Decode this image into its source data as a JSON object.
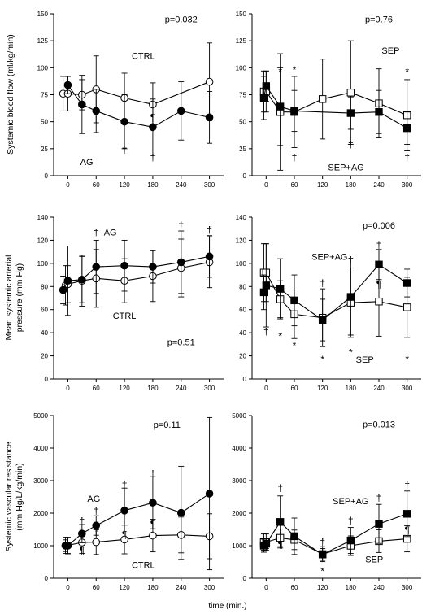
{
  "x_axis_title": "time (min.)",
  "row_ylabels": [
    [
      "Systemic blood flow (ml/kg/min)"
    ],
    [
      "Mean systemic arterial",
      "pressure (mm Hg)"
    ],
    [
      "Systemic vascular resistance",
      "(mm Hg/L/kg/min)"
    ]
  ],
  "chart_data": [
    {
      "type": "line",
      "panel": "top-left",
      "ylim": [
        0,
        150
      ],
      "yticks": [
        0,
        25,
        50,
        75,
        100,
        125,
        150
      ],
      "xticks": [
        0,
        60,
        120,
        180,
        240,
        300
      ],
      "marker": "circle",
      "series": [
        {
          "name": "CTRL",
          "filled": false,
          "x": [
            -10,
            0,
            30,
            60,
            120,
            180,
            300
          ],
          "y": [
            76,
            76,
            75,
            80,
            72,
            66,
            87
          ],
          "err": [
            16,
            16,
            14,
            31,
            23,
            20,
            36
          ]
        },
        {
          "name": "AG",
          "filled": true,
          "x": [
            0,
            30,
            60,
            120,
            180,
            240,
            300
          ],
          "y": [
            84,
            66,
            60,
            50,
            45,
            60,
            54
          ],
          "err": [
            8,
            27,
            20,
            25,
            26,
            27,
            24
          ]
        }
      ],
      "labels": [
        {
          "text": "p=0.032",
          "x": 240,
          "y": 145
        },
        {
          "text": "CTRL",
          "x": 160,
          "y": 111
        },
        {
          "text": "AG",
          "x": 40,
          "y": 13
        }
      ],
      "symbols": [
        {
          "text": "¶",
          "x": 180,
          "y": 54
        },
        {
          "text": "†",
          "x": 120,
          "y": 24
        },
        {
          "text": "†",
          "x": 180,
          "y": 17
        }
      ]
    },
    {
      "type": "line",
      "panel": "top-right",
      "ylim": [
        0,
        150
      ],
      "yticks": [
        0,
        25,
        50,
        75,
        100,
        125,
        150
      ],
      "xticks": [
        0,
        60,
        120,
        180,
        240,
        300
      ],
      "marker": "square",
      "series": [
        {
          "name": "SEP",
          "filled": false,
          "x": [
            -5,
            0,
            30,
            60,
            120,
            180,
            240,
            300
          ],
          "y": [
            78,
            78,
            59,
            59,
            71,
            77,
            67,
            56
          ],
          "err": [
            19,
            19,
            54,
            33,
            37,
            48,
            32,
            33
          ]
        },
        {
          "name": "SEP+AG",
          "filled": true,
          "x": [
            -5,
            0,
            30,
            60,
            180,
            240,
            300
          ],
          "y": [
            72,
            83,
            64,
            60,
            58,
            59,
            44
          ],
          "err": [
            20,
            14,
            36,
            19,
            15,
            20,
            15
          ]
        }
      ],
      "labels": [
        {
          "text": "p=0.76",
          "x": 240,
          "y": 145
        },
        {
          "text": "SEP",
          "x": 265,
          "y": 116
        },
        {
          "text": "SEP+AG",
          "x": 170,
          "y": 8
        }
      ],
      "symbols": [
        {
          "text": "*",
          "x": 30,
          "y": 96
        },
        {
          "text": "*",
          "x": 60,
          "y": 98
        },
        {
          "text": "*",
          "x": 300,
          "y": 96
        },
        {
          "text": "†",
          "x": 60,
          "y": 17
        },
        {
          "text": "†",
          "x": 180,
          "y": 29
        },
        {
          "text": "†",
          "x": 300,
          "y": 17
        }
      ]
    },
    {
      "type": "line",
      "panel": "middle-left",
      "ylim": [
        0,
        140
      ],
      "yticks": [
        0,
        20,
        40,
        60,
        80,
        100,
        120,
        140
      ],
      "xticks": [
        0,
        60,
        120,
        180,
        240,
        300
      ],
      "marker": "circle",
      "series": [
        {
          "name": "CTRL",
          "filled": false,
          "x": [
            -5,
            0,
            30,
            60,
            120,
            180,
            240,
            300
          ],
          "y": [
            81,
            82,
            85,
            87,
            85,
            89,
            96,
            101
          ],
          "err": [
            17,
            16,
            22,
            25,
            19,
            22,
            25,
            22
          ]
        },
        {
          "name": "AG",
          "filled": true,
          "x": [
            -10,
            0,
            30,
            60,
            120,
            180,
            240,
            300
          ],
          "y": [
            77,
            85,
            86,
            97,
            98,
            97,
            101,
            106
          ],
          "err": [
            12,
            30,
            20,
            23,
            22,
            14,
            27,
            18
          ]
        }
      ],
      "labels": [
        {
          "text": "AG",
          "x": 90,
          "y": 127
        },
        {
          "text": "CTRL",
          "x": 120,
          "y": 55
        },
        {
          "text": "p=0.51",
          "x": 240,
          "y": 32
        }
      ],
      "symbols": [
        {
          "text": "†",
          "x": 60,
          "y": 127
        },
        {
          "text": "†",
          "x": 240,
          "y": 133
        },
        {
          "text": "†",
          "x": 300,
          "y": 129
        }
      ]
    },
    {
      "type": "line",
      "panel": "middle-right",
      "ylim": [
        0,
        140
      ],
      "yticks": [
        0,
        20,
        40,
        60,
        80,
        100,
        120,
        140
      ],
      "xticks": [
        0,
        60,
        120,
        180,
        240,
        300
      ],
      "marker": "square",
      "series": [
        {
          "name": "SEP",
          "filled": false,
          "x": [
            -5,
            0,
            30,
            60,
            120,
            180,
            240,
            300
          ],
          "y": [
            92,
            92,
            69,
            56,
            53,
            66,
            67,
            62
          ],
          "err": [
            25,
            25,
            16,
            21,
            25,
            30,
            30,
            26
          ]
        },
        {
          "name": "SEP+AG",
          "filled": true,
          "x": [
            -5,
            0,
            30,
            60,
            120,
            180,
            240,
            300
          ],
          "y": [
            75,
            81,
            78,
            68,
            51,
            71,
            99,
            83
          ],
          "err": [
            15,
            36,
            26,
            22,
            18,
            33,
            13,
            12
          ]
        }
      ],
      "labels": [
        {
          "text": "p=0.006",
          "x": 240,
          "y": 133
        },
        {
          "text": "SEP+AG",
          "x": 135,
          "y": 106
        },
        {
          "text": "SEP",
          "x": 210,
          "y": 17
        }
      ],
      "symbols": [
        {
          "text": "†",
          "x": 0,
          "y": 41
        },
        {
          "text": "†",
          "x": 120,
          "y": 83
        },
        {
          "text": "†",
          "x": 180,
          "y": 103
        },
        {
          "text": "†",
          "x": 240,
          "y": 116
        },
        {
          "text": "¶",
          "x": 240,
          "y": 82
        },
        {
          "text": "*",
          "x": 30,
          "y": 37
        },
        {
          "text": "*",
          "x": 60,
          "y": 29
        },
        {
          "text": "*",
          "x": 120,
          "y": 17
        },
        {
          "text": "*",
          "x": 180,
          "y": 23
        },
        {
          "text": "*",
          "x": 300,
          "y": 17
        }
      ]
    },
    {
      "type": "line",
      "panel": "bottom-left",
      "ylim": [
        0,
        5000
      ],
      "yticks": [
        0,
        1000,
        2000,
        3000,
        4000,
        5000
      ],
      "xticks": [
        0,
        60,
        120,
        180,
        240,
        300
      ],
      "marker": "circle",
      "series": [
        {
          "name": "CTRL",
          "filled": false,
          "x": [
            -5,
            0,
            30,
            60,
            120,
            180,
            240,
            300
          ],
          "y": [
            1010,
            1010,
            1100,
            1110,
            1190,
            1310,
            1330,
            1290
          ],
          "err": [
            250,
            250,
            340,
            380,
            440,
            500,
            550,
            690
          ]
        },
        {
          "name": "AG",
          "filled": true,
          "x": [
            -5,
            0,
            30,
            60,
            120,
            180,
            240,
            300
          ],
          "y": [
            1000,
            1000,
            1370,
            1620,
            2080,
            2320,
            2010,
            2600
          ],
          "err": [
            180,
            250,
            280,
            300,
            690,
            800,
            1430,
            2340
          ]
        }
      ],
      "labels": [
        {
          "text": "p=0.11",
          "x": 210,
          "y": 4730
        },
        {
          "text": "AG",
          "x": 55,
          "y": 2450
        },
        {
          "text": "CTRL",
          "x": 160,
          "y": 410
        }
      ],
      "symbols": [
        {
          "text": "†",
          "x": 30,
          "y": 1760
        },
        {
          "text": "†",
          "x": 60,
          "y": 2080
        },
        {
          "text": "†",
          "x": 120,
          "y": 2880
        },
        {
          "text": "†",
          "x": 180,
          "y": 3210
        },
        {
          "text": "¶",
          "x": 30,
          "y": 850
        },
        {
          "text": "¶",
          "x": 60,
          "y": 1560
        },
        {
          "text": "¶",
          "x": 120,
          "y": 1340
        },
        {
          "text": "¶",
          "x": 180,
          "y": 1660
        }
      ]
    },
    {
      "type": "line",
      "panel": "bottom-right",
      "ylim": [
        0,
        5000
      ],
      "yticks": [
        0,
        1000,
        2000,
        3000,
        4000,
        5000
      ],
      "xticks": [
        0,
        60,
        120,
        180,
        240,
        300
      ],
      "marker": "square",
      "series": [
        {
          "name": "SEP",
          "filled": false,
          "x": [
            -5,
            0,
            30,
            60,
            120,
            180,
            240,
            300
          ],
          "y": [
            1110,
            1110,
            1240,
            1180,
            740,
            1000,
            1140,
            1210
          ],
          "err": [
            250,
            250,
            270,
            300,
            230,
            300,
            350,
            400
          ]
        },
        {
          "name": "SEP+AG",
          "filled": true,
          "x": [
            -5,
            0,
            30,
            60,
            120,
            180,
            240,
            300
          ],
          "y": [
            1000,
            1060,
            1730,
            1290,
            730,
            1160,
            1670,
            1980
          ],
          "err": [
            200,
            150,
            800,
            560,
            180,
            400,
            600,
            700
          ]
        }
      ],
      "labels": [
        {
          "text": "p=0.013",
          "x": 240,
          "y": 4740
        },
        {
          "text": "SEP+AG",
          "x": 180,
          "y": 2370
        },
        {
          "text": "SEP",
          "x": 230,
          "y": 590
        }
      ],
      "symbols": [
        {
          "text": "†",
          "x": 30,
          "y": 2770
        },
        {
          "text": "†",
          "x": 120,
          "y": 1110
        },
        {
          "text": "†",
          "x": 180,
          "y": 1770
        },
        {
          "text": "†",
          "x": 240,
          "y": 2470
        },
        {
          "text": "†",
          "x": 300,
          "y": 2860
        },
        {
          "text": "¶",
          "x": 30,
          "y": 1040
        },
        {
          "text": "¶",
          "x": 300,
          "y": 1480
        },
        {
          "text": "*",
          "x": 120,
          "y": 210
        }
      ]
    }
  ]
}
